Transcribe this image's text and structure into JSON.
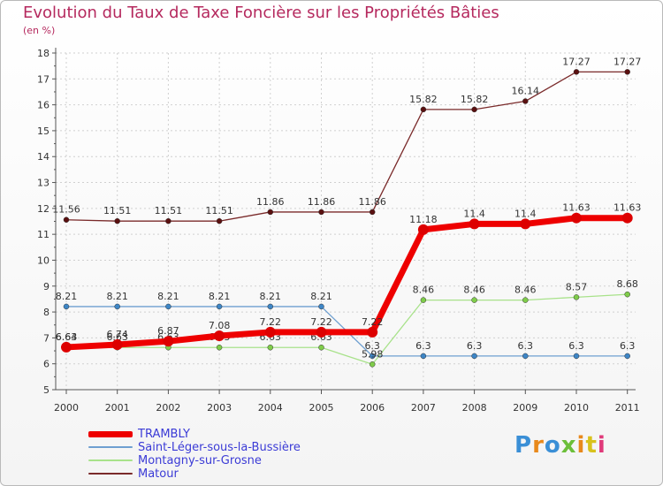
{
  "title": "Evolution du Taux de Taxe Foncière sur les Propriétés Bâties",
  "subtitle": "(en %)",
  "logo_text": "Proxiti",
  "colors": {
    "title": "#b5295e",
    "axis": "#555555",
    "grid": "#d0d0d0",
    "legend_text": "#3b3bd6"
  },
  "chart_data": {
    "type": "line",
    "title": "Evolution du Taux de Taxe Foncière sur les Propriétés Bâties",
    "ylabel": "(en %)",
    "xlabel": "",
    "ylim": [
      5,
      18
    ],
    "yticks": [
      5,
      6,
      7,
      8,
      9,
      10,
      11,
      12,
      13,
      14,
      15,
      16,
      17,
      18
    ],
    "categories": [
      "2000",
      "2001",
      "2002",
      "2003",
      "2004",
      "2005",
      "2006",
      "2007",
      "2008",
      "2009",
      "2010",
      "2011"
    ],
    "series": [
      {
        "name": "Matour",
        "color": "#7a2a2a",
        "marker": "#5a1010",
        "width": 1.3,
        "values": [
          11.56,
          11.51,
          11.51,
          11.51,
          11.86,
          11.86,
          11.86,
          15.82,
          15.82,
          16.14,
          17.27,
          17.27
        ],
        "labels": [
          "11.56",
          "11.51",
          "11.51",
          "11.51",
          "11.86",
          "11.86",
          "11.86",
          "15.82",
          "15.82",
          "16.14",
          "17.27",
          "17.27"
        ]
      },
      {
        "name": "Saint-Léger-sous-la-Bussière",
        "color": "#6e9fd0",
        "marker": "#3e86c6",
        "width": 1.3,
        "values": [
          8.21,
          8.21,
          8.21,
          8.21,
          8.21,
          8.21,
          6.3,
          6.3,
          6.3,
          6.3,
          6.3,
          6.3
        ],
        "labels": [
          "8.21",
          "8.21",
          "8.21",
          "8.21",
          "8.21",
          "8.21",
          "6.3",
          "6.3",
          "6.3",
          "6.3",
          "6.3",
          "6.3"
        ]
      },
      {
        "name": "Montagny-sur-Grosne",
        "color": "#a8e28a",
        "marker": "#7fcc4a",
        "width": 1.3,
        "values": [
          6.63,
          6.63,
          6.63,
          6.63,
          6.63,
          6.63,
          5.98,
          8.46,
          8.46,
          8.46,
          8.57,
          8.68
        ],
        "labels": [
          "6.63",
          "6.63",
          "6.63",
          "6.63",
          "6.63",
          "6.63",
          "5.98",
          "8.46",
          "8.46",
          "8.46",
          "8.57",
          "8.68"
        ]
      },
      {
        "name": "TRAMBLY",
        "color": "#ee0000",
        "marker": "#dd0000",
        "width": 7,
        "values": [
          6.64,
          6.74,
          6.87,
          7.08,
          7.22,
          7.22,
          7.22,
          11.18,
          11.4,
          11.4,
          11.63,
          11.63
        ],
        "labels": [
          "6.64",
          "6.74",
          "6.87",
          "7.08",
          "7.22",
          "7.22",
          "7.22",
          "11.18",
          "11.4",
          "11.4",
          "11.63",
          "11.63"
        ]
      }
    ],
    "legend": [
      {
        "name": "TRAMBLY",
        "color": "#ee0000",
        "thickness": 7
      },
      {
        "name": "Saint-Léger-sous-la-Bussière",
        "color": "#6e9fd0",
        "thickness": 2
      },
      {
        "name": "Montagny-sur-Grosne",
        "color": "#a8e28a",
        "thickness": 2
      },
      {
        "name": "Matour",
        "color": "#7a2a2a",
        "thickness": 2
      }
    ]
  }
}
